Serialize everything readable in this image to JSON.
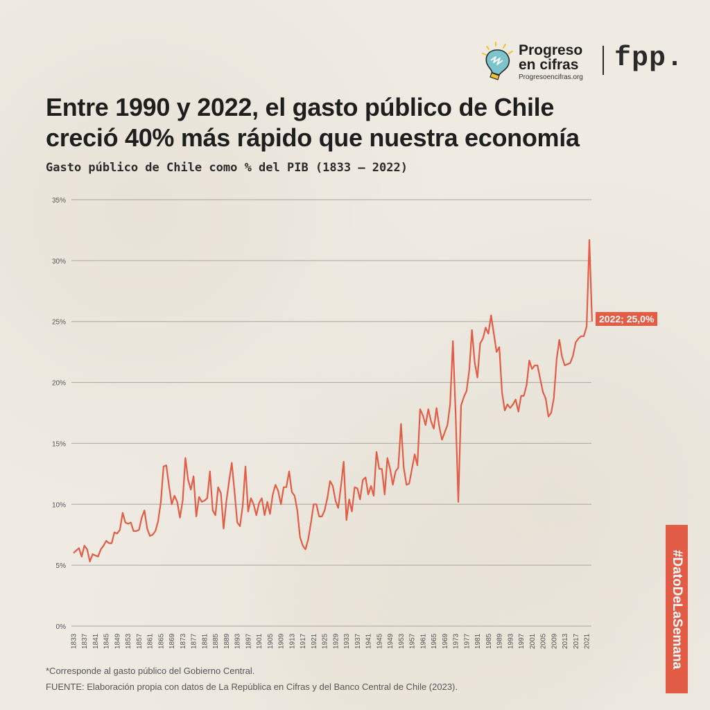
{
  "branding": {
    "logo_title_line1": "Progreso",
    "logo_title_line2": "en cifras",
    "logo_url": "Progresoencifras.org",
    "partner_logo": "fpp.",
    "bulb_icon": "lightbulb-icon"
  },
  "header": {
    "title_line1": "Entre 1990 y 2022, el gasto público de Chile",
    "title_line2": "creció 40% más rápido que nuestra economía",
    "subtitle": "Gasto público de Chile como % del PIB (1833 – 2022)"
  },
  "footer": {
    "footnote": "*Corresponde al gasto público del Gobierno Central.",
    "source": "FUENTE: Elaboración propia con datos de La República en Cifras y del Banco Central de Chile (2023).",
    "hashtag": "#DatoDeLaSemana"
  },
  "colors": {
    "line": "#e35c45",
    "grid": "#a9a6a0",
    "accent": "#e35c45"
  },
  "chart_data": {
    "type": "line",
    "title": "Gasto público de Chile como % del PIB (1833 – 2022)",
    "xlabel": "",
    "ylabel": "",
    "ylim": [
      0,
      35
    ],
    "xlim": [
      1833,
      2022
    ],
    "grid": true,
    "y_ticks": [
      0,
      5,
      10,
      15,
      20,
      25,
      30,
      35
    ],
    "y_tick_labels": [
      "0%",
      "5%",
      "10%",
      "15%",
      "20%",
      "25%",
      "30%",
      "35%"
    ],
    "x_tick_labels": [
      "1833",
      "1837",
      "1841",
      "1845",
      "1849",
      "1853",
      "1857",
      "1861",
      "1865",
      "1869",
      "1873",
      "1877",
      "1881",
      "1885",
      "1889",
      "1893",
      "1897",
      "1901",
      "1905",
      "1909",
      "1913",
      "1917",
      "1921",
      "1925",
      "1929",
      "1933",
      "1937",
      "1941",
      "1945",
      "1949",
      "1953",
      "1957",
      "1961",
      "1965",
      "1969",
      "1973",
      "1977",
      "1981",
      "1985",
      "1989",
      "1993",
      "1997",
      "2001",
      "2005",
      "2009",
      "2013",
      "2017",
      "2021"
    ],
    "end_label": "2022; 25,0%",
    "series": [
      {
        "name": "Gasto público (% PIB)",
        "start_year": 1833,
        "values": [
          6.0,
          6.2,
          6.4,
          5.7,
          6.6,
          6.3,
          5.3,
          5.9,
          5.8,
          5.7,
          6.3,
          6.6,
          7.0,
          6.8,
          6.8,
          7.7,
          7.6,
          7.9,
          9.3,
          8.5,
          8.4,
          8.5,
          7.8,
          7.8,
          7.9,
          8.9,
          9.5,
          8.0,
          7.4,
          7.5,
          7.8,
          8.6,
          10.2,
          13.1,
          13.2,
          11.5,
          10.0,
          10.7,
          10.2,
          8.9,
          10.3,
          13.8,
          12.0,
          11.2,
          12.3,
          9.0,
          10.6,
          10.2,
          10.3,
          10.5,
          12.7,
          9.5,
          9.1,
          11.4,
          10.9,
          8.0,
          10.2,
          11.9,
          13.4,
          11.0,
          8.5,
          8.2,
          9.9,
          13.1,
          9.4,
          10.5,
          10.0,
          9.1,
          10.1,
          10.5,
          9.1,
          10.2,
          9.2,
          10.8,
          11.6,
          11.1,
          10.0,
          11.4,
          11.4,
          12.7,
          11.0,
          10.7,
          9.5,
          7.3,
          6.6,
          6.3,
          7.1,
          8.5,
          10.0,
          10.0,
          9.0,
          9.0,
          9.5,
          10.5,
          11.9,
          11.5,
          10.3,
          9.7,
          11.5,
          13.5,
          8.7,
          10.4,
          9.4,
          11.4,
          11.3,
          10.4,
          12.0,
          12.2,
          10.8,
          11.5,
          10.7,
          14.3,
          12.9,
          12.9,
          10.8,
          13.8,
          12.9,
          11.6,
          12.7,
          13.0,
          16.6,
          13.0,
          11.6,
          11.7,
          12.9,
          14.1,
          13.2,
          17.8,
          17.3,
          16.5,
          17.8,
          16.8,
          16.2,
          17.9,
          16.4,
          15.3,
          15.9,
          16.5,
          18.2,
          23.4,
          17.5,
          10.2,
          18.1,
          18.8,
          19.3,
          21.0,
          24.3,
          21.6,
          20.4,
          23.2,
          23.6,
          24.5,
          24.0,
          25.5,
          24.0,
          22.5,
          22.9,
          19.2,
          17.7,
          18.2,
          17.9,
          18.2,
          18.6,
          17.6,
          18.9,
          18.9,
          19.8,
          21.8,
          21.1,
          21.4,
          21.4,
          20.3,
          19.2,
          18.7,
          17.2,
          17.5,
          18.7,
          21.9,
          23.5,
          22.1,
          21.4,
          21.5,
          21.6,
          22.2,
          23.3,
          23.6,
          23.8,
          23.8,
          24.6,
          31.7,
          25.0
        ]
      }
    ]
  }
}
